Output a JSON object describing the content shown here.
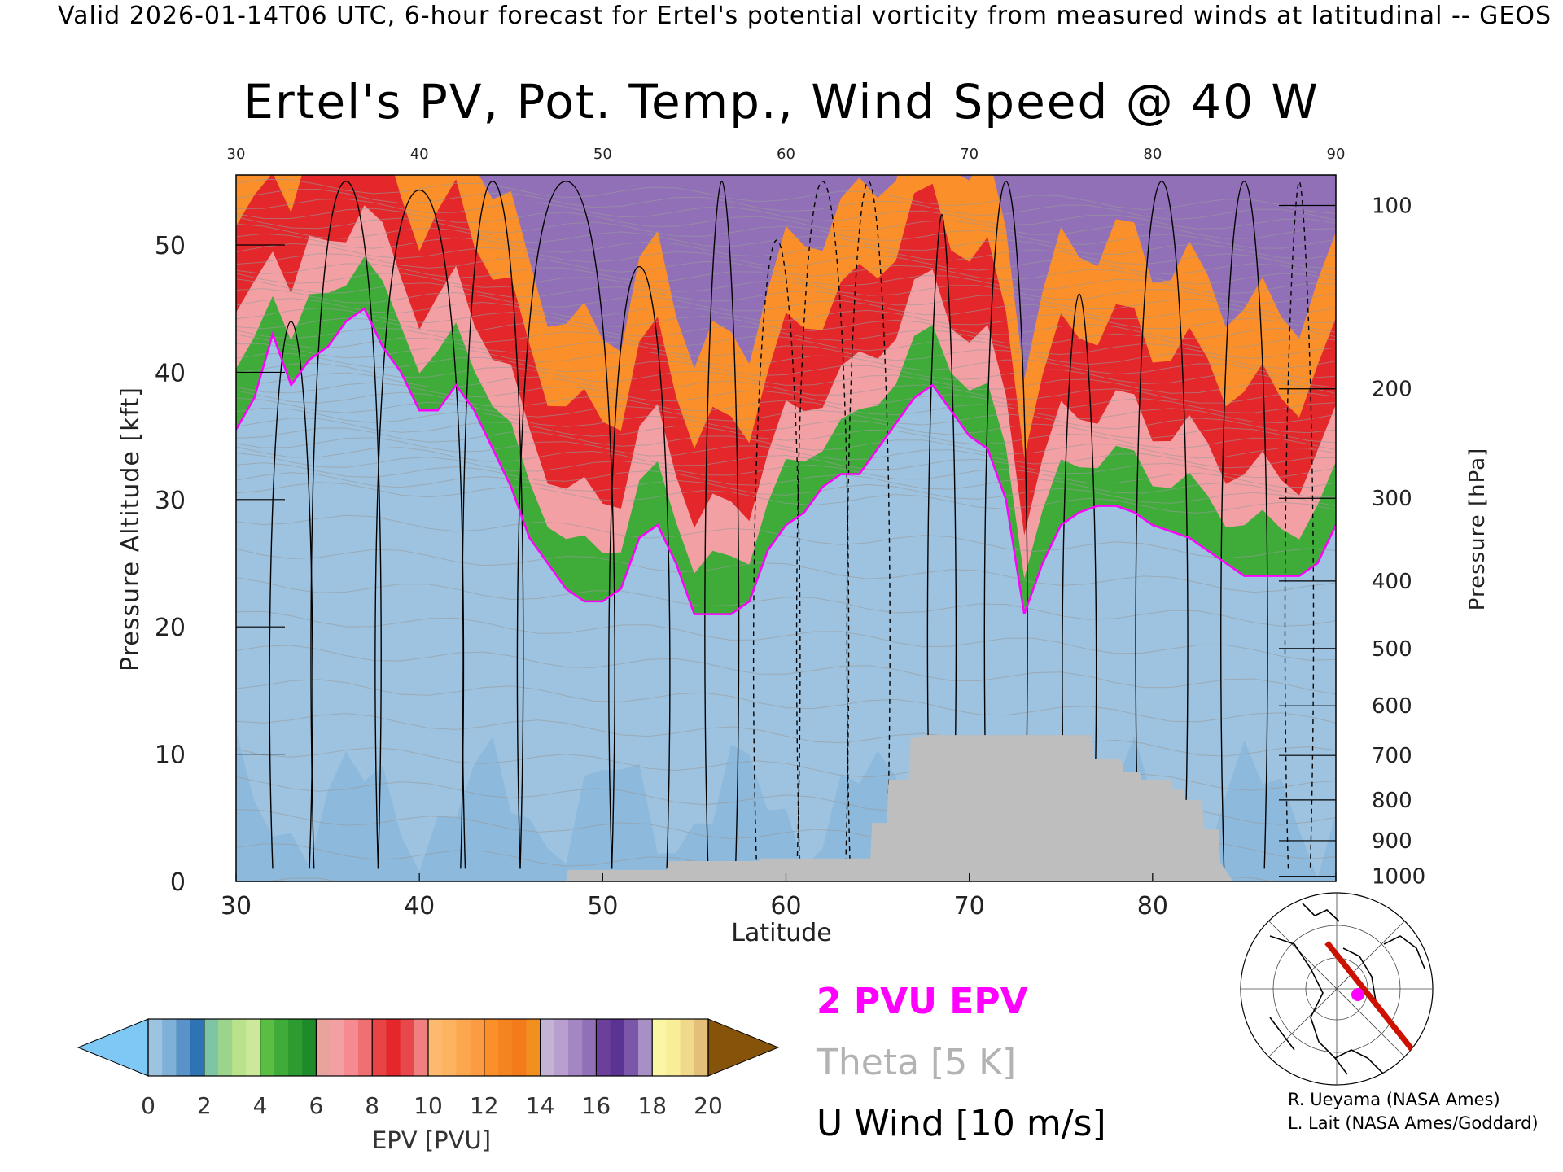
{
  "header": {
    "caption": "Valid 2026-01-14T06 UTC, 6-hour forecast for Ertel's potential vorticity from measured winds at latitudinal -- GEOS"
  },
  "chart_data": {
    "type": "heatmap",
    "title": "Ertel's PV, Pot. Temp., Wind Speed @ 40 W",
    "xlabel": "Latitude",
    "ylabel": "Pressure Altitude [kft]",
    "y2label": "Pressure [hPa]",
    "xlim": [
      30,
      90
    ],
    "ylim": [
      0,
      55.5
    ],
    "x_ticks": [
      30,
      40,
      50,
      60,
      70,
      80,
      90
    ],
    "y_ticks": [
      0,
      10,
      20,
      30,
      40,
      50
    ],
    "pressure_ticks": [
      {
        "label": "100",
        "kft": 53.1
      },
      {
        "label": "200",
        "kft": 38.7
      },
      {
        "label": "300",
        "kft": 30.1
      },
      {
        "label": "400",
        "kft": 23.6
      },
      {
        "label": "500",
        "kft": 18.3
      },
      {
        "label": "600",
        "kft": 13.8
      },
      {
        "label": "700",
        "kft": 9.9
      },
      {
        "label": "800",
        "kft": 6.4
      },
      {
        "label": "900",
        "kft": 3.2
      },
      {
        "label": "1000",
        "kft": 0.4
      }
    ],
    "tropopause_2pvu": {
      "lat": [
        30,
        31,
        32,
        33,
        34,
        35,
        36,
        37,
        38,
        39,
        40,
        41,
        42,
        43,
        44,
        45,
        46,
        47,
        48,
        49,
        50,
        51,
        52,
        53,
        54,
        55,
        56,
        57,
        58,
        59,
        60,
        61,
        62,
        63,
        64,
        65,
        66,
        67,
        68,
        69,
        70,
        71,
        72,
        73,
        74,
        75,
        76,
        77,
        78,
        79,
        80,
        81,
        82,
        83,
        84,
        85,
        86,
        87,
        88,
        89,
        90
      ],
      "kft": [
        35.5,
        38,
        43,
        39,
        41,
        42,
        44,
        45,
        42,
        40,
        37,
        37,
        39,
        37,
        34,
        31,
        27,
        25,
        23,
        22,
        22,
        23,
        27,
        28,
        25,
        21,
        21,
        21,
        22,
        26,
        28,
        29,
        31,
        32,
        32,
        34,
        36,
        38,
        39,
        37,
        35,
        34,
        30,
        21,
        25,
        28,
        29,
        29.5,
        29.5,
        29,
        28,
        27.5,
        27,
        26,
        25,
        24,
        24,
        24,
        24,
        25,
        28
      ]
    },
    "terrain": {
      "lat": [
        48,
        48.1,
        53.5,
        53.6,
        58.5,
        58.6,
        64.6,
        64.7,
        65.5,
        65.6,
        66.7,
        66.8,
        67.4,
        67.5,
        76.7,
        76.8,
        78.3,
        78.4,
        79.3,
        79.4,
        81,
        81.1,
        81.7,
        81.8,
        82.7,
        82.8,
        83.6,
        83.7,
        84.4
      ],
      "kft": [
        0,
        0.9,
        0.9,
        1.6,
        1.6,
        1.8,
        1.8,
        4.6,
        4.6,
        8,
        8,
        11.3,
        11.3,
        11.5,
        11.5,
        9.6,
        9.6,
        8.6,
        8.6,
        8.0,
        8.0,
        7.2,
        7.2,
        6.4,
        6.4,
        4.1,
        4.1,
        1.5,
        0
      ]
    },
    "epv_levels": [
      {
        "range": "<0",
        "color": "#7ec8f5"
      },
      {
        "range": "0-0.5",
        "color": "#9dc3e0"
      },
      {
        "range": "0.5-1",
        "color": "#7fb0d8"
      },
      {
        "range": "1-1.5",
        "color": "#5993c9"
      },
      {
        "range": "1.5-2",
        "color": "#2e74b4"
      },
      {
        "range": "2-2.5",
        "color": "#7dc5a5"
      },
      {
        "range": "2.5-3",
        "color": "#9cd38d"
      },
      {
        "range": "3-3.5",
        "color": "#b9e28a"
      },
      {
        "range": "3.5-4",
        "color": "#cde89a"
      },
      {
        "range": "4-4.5",
        "color": "#5cbd45"
      },
      {
        "range": "4.5-5",
        "color": "#3fac3a"
      },
      {
        "range": "5-5.5",
        "color": "#2e9b31"
      },
      {
        "range": "5.5-6",
        "color": "#1f8a2a"
      },
      {
        "range": "6-6.5",
        "color": "#e9a39c"
      },
      {
        "range": "6.5-7",
        "color": "#f3a0a4"
      },
      {
        "range": "7-7.5",
        "color": "#f58a90"
      },
      {
        "range": "7.5-8",
        "color": "#ef6f73"
      },
      {
        "range": "8-8.5",
        "color": "#e84345"
      },
      {
        "range": "8.5-9",
        "color": "#e3272b"
      },
      {
        "range": "9-9.5",
        "color": "#e8484b"
      },
      {
        "range": "9.5-10",
        "color": "#f08080"
      },
      {
        "range": "10-10.5",
        "color": "#fdba6f"
      },
      {
        "range": "10.5-11",
        "color": "#fdb360"
      },
      {
        "range": "11-11.5",
        "color": "#fca64f"
      },
      {
        "range": "11.5-12",
        "color": "#fc9b42"
      },
      {
        "range": "12-12.5",
        "color": "#fb8f2a"
      },
      {
        "range": "12.5-13",
        "color": "#f58320"
      },
      {
        "range": "13-13.5",
        "color": "#f47b1c"
      },
      {
        "range": "13.5-14",
        "color": "#f2901f"
      },
      {
        "range": "14-14.5",
        "color": "#c5b3d6"
      },
      {
        "range": "14.5-15",
        "color": "#b89fd0"
      },
      {
        "range": "15-15.5",
        "color": "#a586c4"
      },
      {
        "range": "15.5-16",
        "color": "#9270b8"
      },
      {
        "range": "16-16.5",
        "color": "#6b3f9a"
      },
      {
        "range": "16.5-17",
        "color": "#5b3493"
      },
      {
        "range": "17-17.5",
        "color": "#7b56a9"
      },
      {
        "range": "17.5-18",
        "color": "#a88fc6"
      },
      {
        "range": "18-18.5",
        "color": "#fbf5a6"
      },
      {
        "range": "18.5-19",
        "color": "#f8ee98"
      },
      {
        "range": "19-19.5",
        "color": "#f0d98a"
      },
      {
        "range": "19.5-20",
        "color": "#e3bf7a"
      },
      {
        "range": ">20",
        "color": "#85540a"
      }
    ],
    "colorbar": {
      "label": "EPV [PVU]",
      "ticks": [
        "0",
        "2",
        "4",
        "6",
        "8",
        "10",
        "12",
        "14",
        "16",
        "18",
        "20"
      ]
    },
    "legend": {
      "items": [
        {
          "text": "2 PVU EPV",
          "color": "#ff00ff"
        },
        {
          "text": "Theta [5 K]",
          "color": "#b3b3b3"
        },
        {
          "text": "U Wind [10 m/s]",
          "color": "#000000"
        }
      ]
    },
    "colors": {
      "tropopause": "#ff00ff",
      "terrain": "#bebebe",
      "theta": "#9a9a9a",
      "wind": "#000000",
      "map_track": "#cc1100"
    }
  },
  "credits": [
    "R. Ueyama (NASA Ames)",
    "L. Lait (NASA Ames/Goddard)"
  ]
}
